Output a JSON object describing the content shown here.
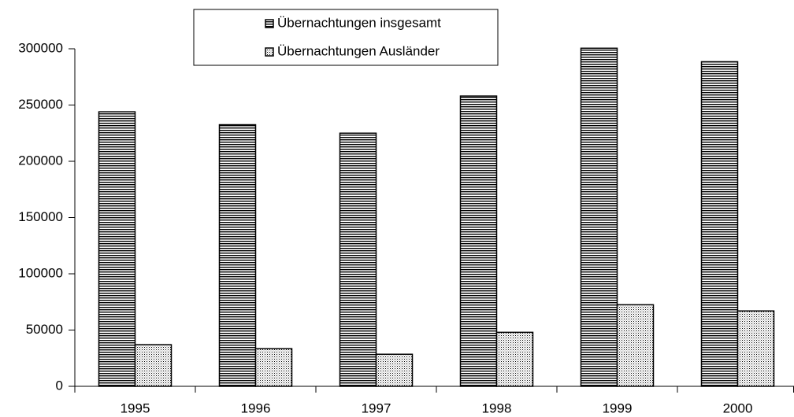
{
  "chart_data": {
    "type": "bar",
    "categories": [
      "1995",
      "1996",
      "1997",
      "1998",
      "1999",
      "2000"
    ],
    "series": [
      {
        "name": "Übernachtungen insgesamt",
        "color": "#000000",
        "pattern": "horizontal-lines",
        "values": [
          244000,
          232500,
          225000,
          258000,
          300500,
          288500
        ]
      },
      {
        "name": "Übernachtungen Ausländer",
        "color": "#000000",
        "pattern": "dots",
        "values": [
          37000,
          33500,
          28500,
          48000,
          72500,
          67000
        ]
      }
    ],
    "ylim": [
      0,
      300000
    ],
    "yticks": [
      0,
      50000,
      100000,
      150000,
      200000,
      250000,
      300000
    ],
    "grid": false,
    "legend": "top"
  }
}
